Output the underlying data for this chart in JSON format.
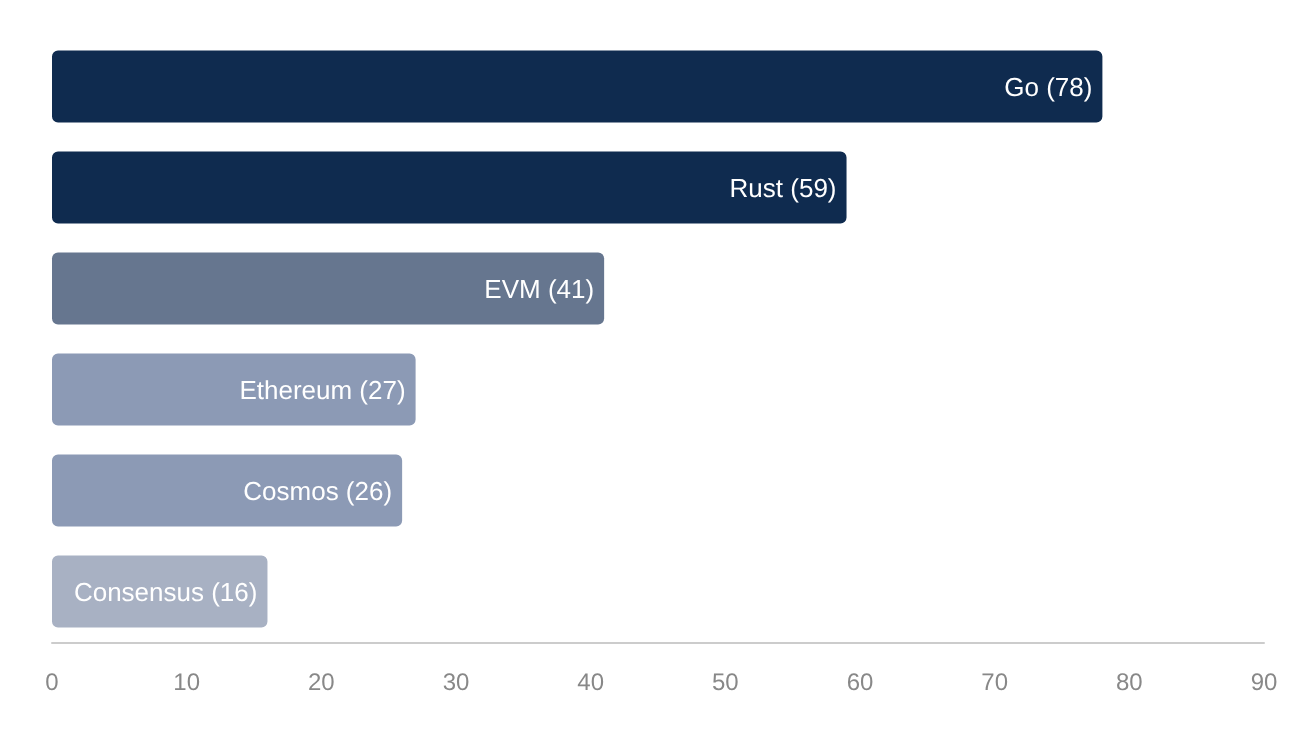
{
  "chart_data": {
    "type": "bar",
    "orientation": "horizontal",
    "categories": [
      null,
      null,
      null,
      null,
      null,
      null
    ],
    "values": [
      78,
      59,
      41,
      27,
      26,
      16
    ],
    "colors": [
      "#0f2b4f",
      "#0f2b4f",
      "#66768f",
      "#8c9ab5",
      "#8c9ab5",
      "#a8b1c3"
    ],
    "xlim": [
      0,
      90
    ],
    "xticks": [
      0,
      10,
      20,
      30,
      40,
      50,
      60,
      70,
      80,
      90
    ],
    "value_labels": [
      "Go (78)",
      "Rust (59)",
      "EVM (41)",
      "Ethereum (27)",
      "Cosmos (26)",
      "Consensus (16)"
    ],
    "grid": false,
    "tick_labels": "x"
  }
}
